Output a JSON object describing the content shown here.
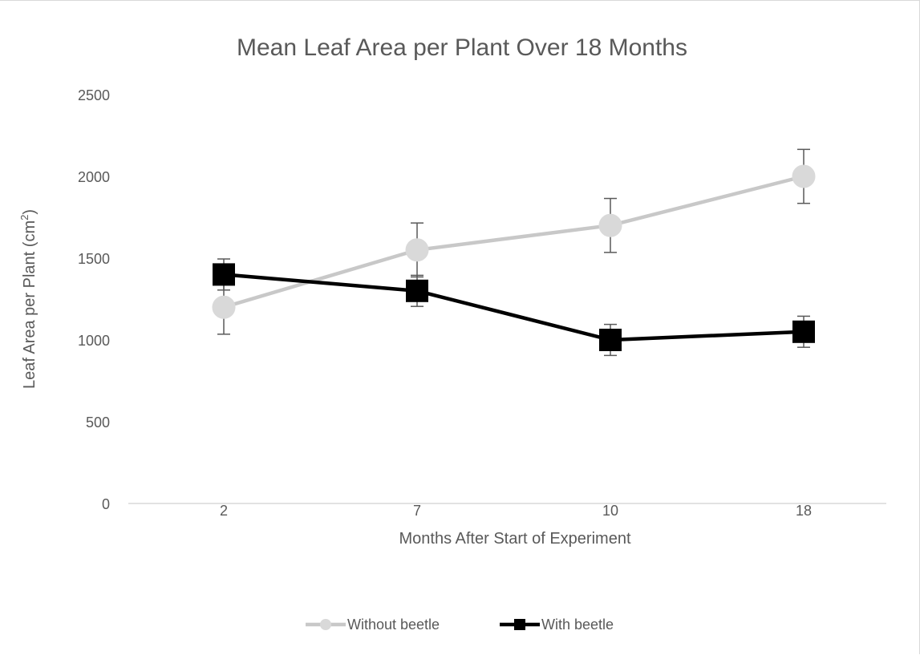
{
  "chart_data": {
    "type": "line",
    "title": "Mean Leaf Area per Plant Over 18 Months",
    "xlabel": "Months After Start of Experiment",
    "ylabel_main": "Leaf Area per Plant (cm",
    "ylabel_sup": "2",
    "ylabel_close": ")",
    "categories": [
      "2",
      "7",
      "10",
      "18"
    ],
    "ylim": [
      0,
      2500
    ],
    "yticks": [
      0,
      500,
      1000,
      1500,
      2000,
      2500
    ],
    "grid": false,
    "legend_position": "bottom",
    "series": [
      {
        "name": "Without beetle",
        "values": [
          1200,
          1550,
          1700,
          2000
        ],
        "error": [
          165,
          165,
          165,
          165
        ],
        "color": "#c8c8c8",
        "marker": "circle"
      },
      {
        "name": "With beetle",
        "values": [
          1400,
          1300,
          1000,
          1050
        ],
        "error": [
          95,
          95,
          95,
          95
        ],
        "color": "#000000",
        "marker": "square"
      }
    ]
  },
  "colors": {
    "axis": "#d9d9d9",
    "text": "#595959",
    "error_bar": "#595959"
  }
}
